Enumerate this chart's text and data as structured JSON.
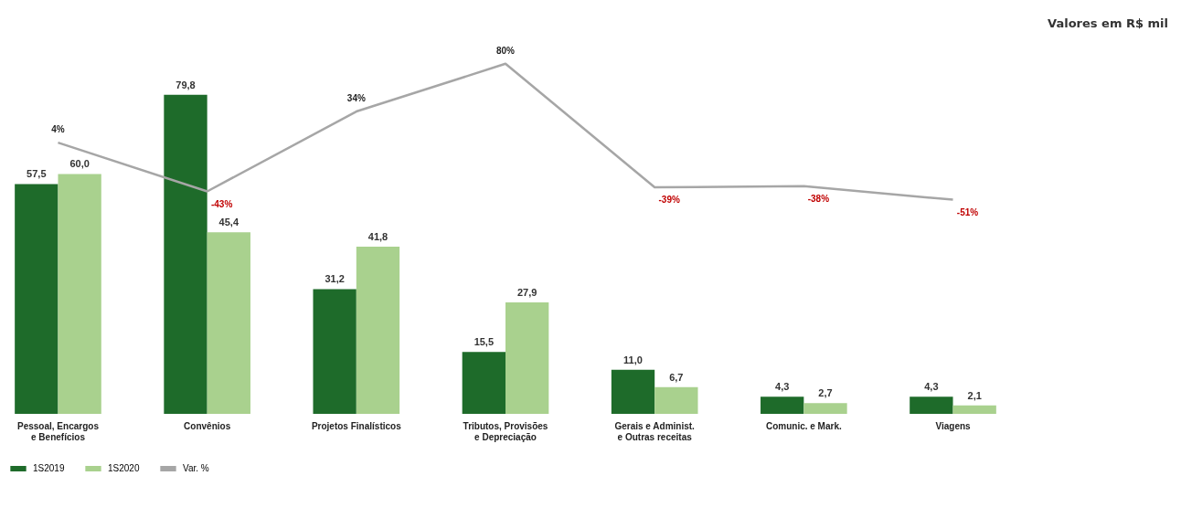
{
  "chart_data": {
    "type": "bar",
    "annotations": [
      "Valores em R$ mil"
    ],
    "categories": [
      "Pessoal, Encargos e Benefícios",
      "Convênios",
      "Projetos Finalísticos",
      "Tributos, Provisões e Depreciação",
      "Gerais e Administ. e Outras receitas",
      "Comunic. e Mark.",
      "Viagens"
    ],
    "series": [
      {
        "name": "1S2019",
        "color": "#1e6b2a",
        "values": [
          57.5,
          79.8,
          31.2,
          15.5,
          11.0,
          4.3,
          4.3
        ],
        "value_labels": [
          "57,5",
          "79,8",
          "31,2",
          "15,5",
          "11,0",
          "4,3",
          "4,3"
        ]
      },
      {
        "name": "1S2020",
        "color": "#a9d18e",
        "values": [
          60.0,
          45.4,
          41.8,
          27.9,
          6.7,
          2.7,
          2.1
        ],
        "value_labels": [
          "60,0",
          "45,4",
          "41,8",
          "27,9",
          "6,7",
          "2,7",
          "2,1"
        ]
      },
      {
        "name": "Var. %",
        "type": "line",
        "axis": "y2",
        "color": "#a6a6a6",
        "values": [
          4,
          -43,
          34,
          80,
          -39,
          -38,
          -51
        ],
        "value_labels": [
          "4%",
          "-43%",
          "34%",
          "80%",
          "-39%",
          "-38%",
          "-51%"
        ]
      }
    ],
    "tick_labels": "x",
    "legend": "bottom",
    "marker": "none"
  }
}
